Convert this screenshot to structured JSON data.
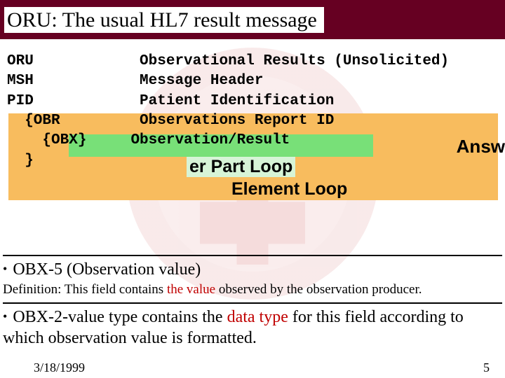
{
  "colors": {
    "titlebar_bg": "#660022",
    "orange_box": "#f8bc5e",
    "green_box": "#78e078",
    "red_text": "#c00000"
  },
  "title": "ORU: The usual HL7 result message",
  "code_rows": [
    {
      "col1": "ORU",
      "col2": "Observational Results (Unsolicited)"
    },
    {
      "col1": "MSH",
      "col2": "Message Header"
    },
    {
      "col1": "PID",
      "col2": "Patient Identification"
    },
    {
      "col1": "  {OBR",
      "col2": "Observations Report ID"
    },
    {
      "col1": "    {OBX}",
      "col2": "Observation/Result"
    },
    {
      "col1": "  }",
      "col2": ""
    }
  ],
  "answ": "Answ",
  "loop1": "er Part Loop",
  "loop2": "Element Loop",
  "bullet1_a": "OBX-5 (Observation value)",
  "defn_a": "Definition: This field contains ",
  "defn_red": "the value",
  "defn_b": " observed by the observation producer.",
  "bullet2_a": "OBX-2-value type contains the ",
  "bullet2_red": "data type",
  "bullet2_b": " for this field according to which observation value is formatted.",
  "footer": {
    "date": "3/18/1999",
    "page": "5"
  }
}
